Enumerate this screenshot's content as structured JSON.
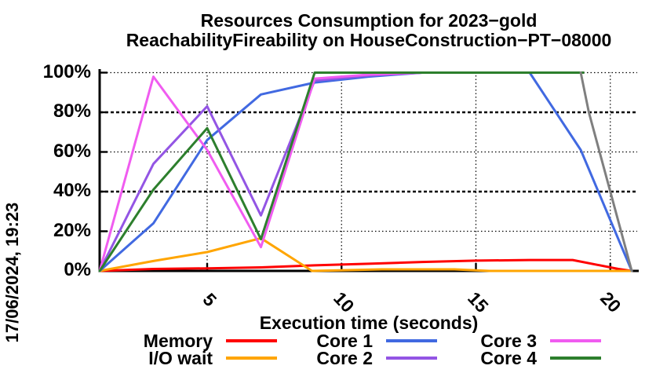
{
  "title": {
    "line1": "Resources Consumption for 2023−gold",
    "line2": "ReachabilityFireability on HouseConstruction−PT−08000"
  },
  "timestamp": "17/06/2024, 19:23",
  "chart_data": {
    "type": "line",
    "title": "Resources Consumption for 2023−gold ReachabilityFireability on HouseConstruction−PT−08000",
    "xlabel": "Execution time (seconds)",
    "ylabel": "",
    "xlim": [
      1,
      21
    ],
    "ylim": [
      0,
      100
    ],
    "x_ticks": [
      5,
      10,
      15,
      20
    ],
    "y_ticks": [
      "0%",
      "20%",
      "40%",
      "60%",
      "80%",
      "100%"
    ],
    "grid": true,
    "legend_position": "bottom",
    "series": [
      {
        "name": "Memory",
        "color": "#ff0000",
        "points": [
          [
            1,
            0
          ],
          [
            3,
            1
          ],
          [
            5,
            1.3
          ],
          [
            7,
            1.8
          ],
          [
            9,
            2.8
          ],
          [
            11,
            3.6
          ],
          [
            13,
            4.5
          ],
          [
            15,
            5.2
          ],
          [
            17,
            5.5
          ],
          [
            18.6,
            5.5
          ],
          [
            20.3,
            1
          ],
          [
            20.8,
            0
          ]
        ]
      },
      {
        "name": "I/O wait",
        "color": "#ffa500",
        "points": [
          [
            1,
            0
          ],
          [
            3,
            5
          ],
          [
            5,
            9.5
          ],
          [
            7,
            16.5
          ],
          [
            8.9,
            0
          ],
          [
            11.5,
            0.8
          ],
          [
            14.2,
            0.8
          ],
          [
            15.5,
            0
          ],
          [
            20.8,
            0
          ]
        ]
      },
      {
        "name": "Core 1",
        "color": "#4169e1",
        "points": [
          [
            1,
            0
          ],
          [
            3,
            24
          ],
          [
            5,
            66
          ],
          [
            7,
            89
          ],
          [
            9,
            95
          ],
          [
            11,
            98
          ],
          [
            13,
            100
          ],
          [
            15,
            100
          ],
          [
            17,
            100
          ],
          [
            18.9,
            61
          ],
          [
            20.8,
            0
          ]
        ]
      },
      {
        "name": "Core 2",
        "color": "#9355e4",
        "points": [
          [
            1,
            0
          ],
          [
            3,
            54
          ],
          [
            5,
            83
          ],
          [
            7,
            28
          ],
          [
            9,
            96
          ],
          [
            11,
            98.5
          ],
          [
            13,
            100
          ],
          [
            15,
            100
          ],
          [
            17,
            100
          ],
          [
            19,
            100
          ]
        ]
      },
      {
        "name": "Core 3",
        "color": "#f05cf0",
        "points": [
          [
            1,
            0
          ],
          [
            3,
            98
          ],
          [
            5,
            61
          ],
          [
            7,
            12
          ],
          [
            9,
            97
          ],
          [
            11,
            99
          ],
          [
            13,
            100
          ],
          [
            15,
            100
          ],
          [
            17,
            100
          ],
          [
            19,
            100
          ]
        ]
      },
      {
        "name": "Core 4",
        "color": "#2d7f2d",
        "points": [
          [
            1,
            0
          ],
          [
            3,
            41
          ],
          [
            5,
            72
          ],
          [
            7,
            16
          ],
          [
            9,
            100
          ],
          [
            11,
            100
          ],
          [
            13,
            100
          ],
          [
            15,
            100
          ],
          [
            17,
            100
          ],
          [
            19,
            100
          ]
        ]
      },
      {
        "name": "",
        "color": "#7f7f7f",
        "in_legend": false,
        "points": [
          [
            18.9,
            100
          ],
          [
            19.2,
            80
          ],
          [
            20.8,
            0
          ]
        ]
      }
    ]
  }
}
